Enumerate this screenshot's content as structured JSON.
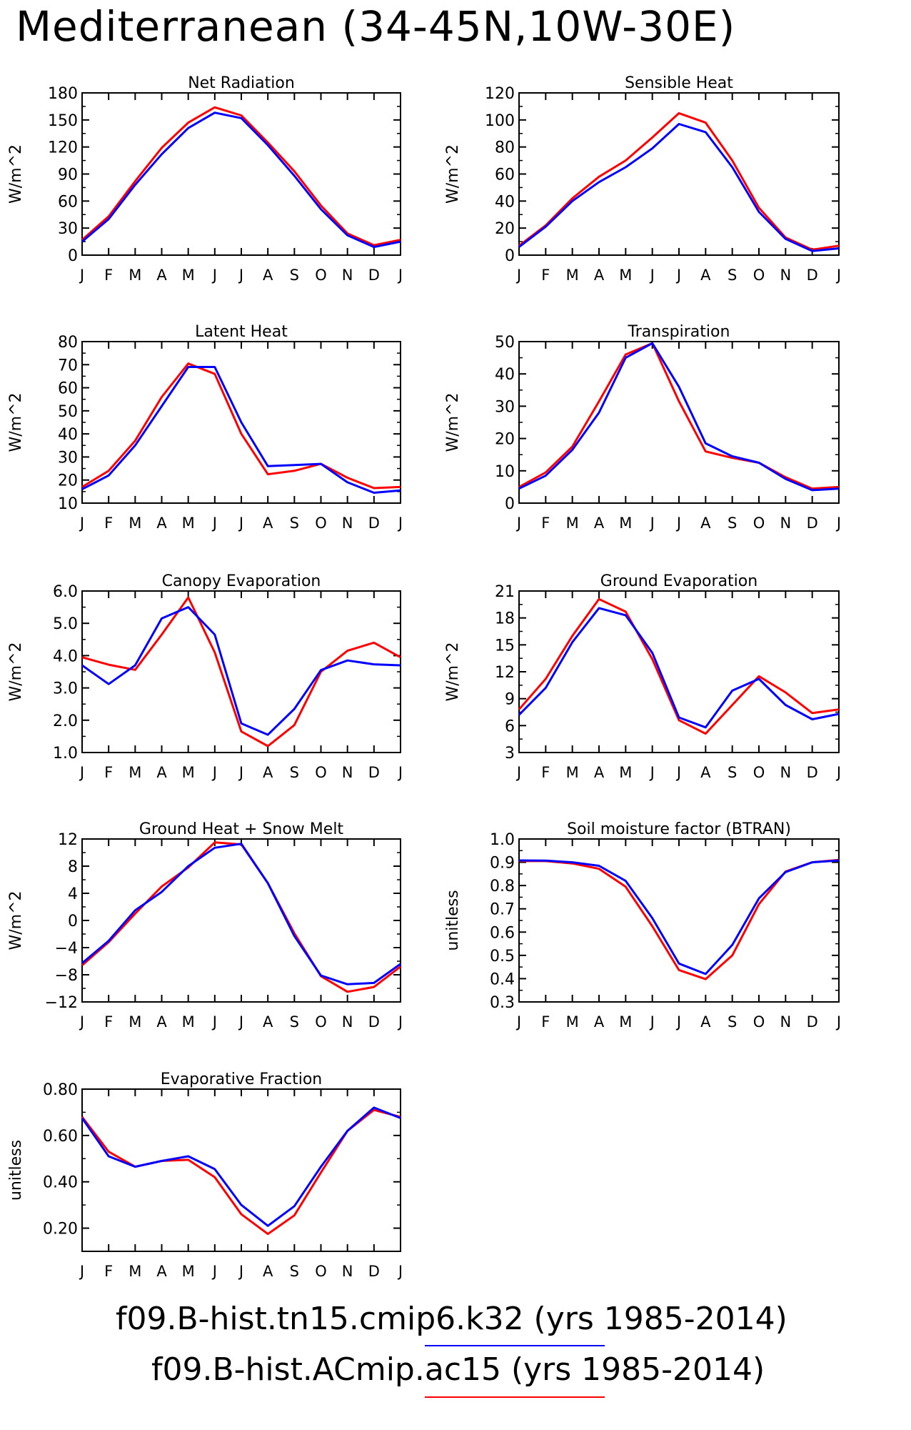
{
  "title": "Mediterranean (34-45N,10W-30E)",
  "legend": [
    {
      "label": "f09.B-hist.tn15.cmip6.k32 (yrs 1985-2014)",
      "color": "#0000ff"
    },
    {
      "label": "f09.B-hist.ACmip.ac15 (yrs 1985-2014)",
      "color": "#ff0000"
    }
  ],
  "chart_data": [
    {
      "type": "line",
      "title": "Net Radiation",
      "ylabel": "W/m^2",
      "categories": [
        "J",
        "F",
        "M",
        "A",
        "M",
        "J",
        "J",
        "A",
        "S",
        "O",
        "N",
        "D",
        "J"
      ],
      "ylim": [
        0,
        180
      ],
      "yticks": [
        "0",
        "30",
        "60",
        "90",
        "120",
        "150",
        "180"
      ],
      "series": [
        {
          "color": "#ff0000",
          "values": [
            17,
            43,
            82,
            119,
            147,
            164,
            155,
            125,
            93,
            55,
            24,
            11,
            17
          ]
        },
        {
          "color": "#0000ff",
          "values": [
            15,
            40,
            78,
            112,
            141,
            158,
            152,
            122,
            88,
            51,
            22,
            9,
            15
          ]
        }
      ]
    },
    {
      "type": "line",
      "title": "Sensible Heat",
      "ylabel": "W/m^2",
      "categories": [
        "J",
        "F",
        "M",
        "A",
        "M",
        "J",
        "J",
        "A",
        "S",
        "O",
        "N",
        "D",
        "J"
      ],
      "ylim": [
        0,
        120
      ],
      "yticks": [
        "0",
        "20",
        "40",
        "60",
        "80",
        "100",
        "120"
      ],
      "series": [
        {
          "color": "#ff0000",
          "values": [
            7,
            22,
            42,
            58,
            70,
            87,
            105,
            98,
            70,
            35,
            13,
            4,
            7
          ]
        },
        {
          "color": "#0000ff",
          "values": [
            6,
            21,
            40,
            54,
            65,
            79,
            97,
            91,
            65,
            32,
            12,
            3,
            5
          ]
        }
      ]
    },
    {
      "type": "line",
      "title": "Latent Heat",
      "ylabel": "W/m^2",
      "categories": [
        "J",
        "F",
        "M",
        "A",
        "M",
        "J",
        "J",
        "A",
        "S",
        "O",
        "N",
        "D",
        "J"
      ],
      "ylim": [
        10,
        80
      ],
      "yticks": [
        "10",
        "20",
        "30",
        "40",
        "50",
        "60",
        "70",
        "80"
      ],
      "series": [
        {
          "color": "#ff0000",
          "values": [
            17,
            24,
            37,
            56,
            70.5,
            66,
            40,
            22.5,
            24,
            27,
            21,
            16.5,
            17
          ]
        },
        {
          "color": "#0000ff",
          "values": [
            16,
            22,
            35,
            52,
            69,
            69,
            45,
            26,
            26.5,
            27,
            19,
            14.5,
            15.5
          ]
        }
      ]
    },
    {
      "type": "line",
      "title": "Transpiration",
      "ylabel": "W/m^2",
      "categories": [
        "J",
        "F",
        "M",
        "A",
        "M",
        "J",
        "J",
        "A",
        "S",
        "O",
        "N",
        "D",
        "J"
      ],
      "ylim": [
        0,
        50
      ],
      "yticks": [
        "0",
        "10",
        "20",
        "30",
        "40",
        "50"
      ],
      "series": [
        {
          "color": "#ff0000",
          "values": [
            5,
            9.5,
            17.5,
            31.5,
            46,
            49.5,
            31.5,
            16,
            14,
            12.5,
            8,
            4.5,
            5
          ]
        },
        {
          "color": "#0000ff",
          "values": [
            4.5,
            8.5,
            16.5,
            28,
            45,
            49.5,
            36,
            18.5,
            14.5,
            12.5,
            7.5,
            4,
            4.5
          ]
        }
      ]
    },
    {
      "type": "line",
      "title": "Canopy Evaporation",
      "ylabel": "W/m^2",
      "categories": [
        "J",
        "F",
        "M",
        "A",
        "M",
        "J",
        "J",
        "A",
        "S",
        "O",
        "N",
        "D",
        "J"
      ],
      "ylim": [
        1.0,
        6.0
      ],
      "yticks": [
        "1.0",
        "2.0",
        "3.0",
        "4.0",
        "5.0",
        "6.0"
      ],
      "series": [
        {
          "color": "#ff0000",
          "values": [
            3.95,
            3.72,
            3.56,
            4.65,
            5.8,
            4.1,
            1.65,
            1.2,
            1.85,
            3.5,
            4.15,
            4.4,
            3.95
          ]
        },
        {
          "color": "#0000ff",
          "values": [
            3.7,
            3.12,
            3.7,
            5.15,
            5.5,
            4.65,
            1.9,
            1.55,
            2.35,
            3.55,
            3.85,
            3.73,
            3.7
          ]
        }
      ]
    },
    {
      "type": "line",
      "title": "Ground Evaporation",
      "ylabel": "W/m^2",
      "categories": [
        "J",
        "F",
        "M",
        "A",
        "M",
        "J",
        "J",
        "A",
        "S",
        "O",
        "N",
        "D",
        "J"
      ],
      "ylim": [
        3,
        21
      ],
      "yticks": [
        "3",
        "6",
        "9",
        "12",
        "15",
        "18",
        "21"
      ],
      "series": [
        {
          "color": "#ff0000",
          "values": [
            7.8,
            11.2,
            16,
            20.1,
            18.7,
            13.4,
            6.6,
            5.1,
            8.3,
            11.5,
            9.7,
            7.4,
            7.8
          ]
        },
        {
          "color": "#0000ff",
          "values": [
            7.2,
            10.2,
            15.3,
            19.1,
            18.3,
            14.1,
            6.9,
            5.8,
            9.9,
            11.2,
            8.3,
            6.7,
            7.3
          ]
        }
      ]
    },
    {
      "type": "line",
      "title": "Ground Heat + Snow Melt",
      "ylabel": "W/m^2",
      "categories": [
        "J",
        "F",
        "M",
        "A",
        "M",
        "J",
        "J",
        "A",
        "S",
        "O",
        "N",
        "D",
        "J"
      ],
      "ylim": [
        -12,
        12
      ],
      "yticks": [
        "−12",
        "−8",
        "−4",
        "0",
        "4",
        "8",
        "12"
      ],
      "series": [
        {
          "color": "#ff0000",
          "values": [
            -6.6,
            -3.2,
            1.0,
            5.0,
            7.8,
            11.5,
            11.2,
            5.5,
            -1.9,
            -8.2,
            -10.5,
            -9.8,
            -6.8
          ]
        },
        {
          "color": "#0000ff",
          "values": [
            -6.3,
            -3.0,
            1.5,
            4.2,
            8.0,
            10.7,
            11.3,
            5.5,
            -2.3,
            -8.1,
            -9.4,
            -9.2,
            -6.4
          ]
        }
      ]
    },
    {
      "type": "line",
      "title": "Soil moisture factor (BTRAN)",
      "ylabel": "unitless",
      "categories": [
        "J",
        "F",
        "M",
        "A",
        "M",
        "J",
        "J",
        "A",
        "S",
        "O",
        "N",
        "D",
        "J"
      ],
      "ylim": [
        0.3,
        1.0
      ],
      "yticks": [
        "0.3",
        "0.4",
        "0.5",
        "0.6",
        "0.7",
        "0.8",
        "0.9",
        "1.0"
      ],
      "series": [
        {
          "color": "#ff0000",
          "values": [
            0.905,
            0.905,
            0.895,
            0.872,
            0.795,
            0.625,
            0.437,
            0.398,
            0.5,
            0.72,
            0.86,
            0.9,
            0.91
          ]
        },
        {
          "color": "#0000ff",
          "values": [
            0.908,
            0.907,
            0.9,
            0.885,
            0.82,
            0.66,
            0.465,
            0.42,
            0.545,
            0.745,
            0.858,
            0.9,
            0.908
          ]
        }
      ]
    },
    {
      "type": "line",
      "title": "Evaporative Fraction",
      "ylabel": "unitless",
      "categories": [
        "J",
        "F",
        "M",
        "A",
        "M",
        "J",
        "J",
        "A",
        "S",
        "O",
        "N",
        "D",
        "J"
      ],
      "ylim": [
        0.1,
        0.8
      ],
      "yticks": [
        "0.20",
        "0.40",
        "0.60",
        "0.80"
      ],
      "ytick_values": [
        0.2,
        0.4,
        0.6,
        0.8
      ],
      "series": [
        {
          "color": "#ff0000",
          "values": [
            0.68,
            0.53,
            0.465,
            0.49,
            0.495,
            0.42,
            0.26,
            0.175,
            0.255,
            0.44,
            0.62,
            0.71,
            0.68
          ]
        },
        {
          "color": "#0000ff",
          "values": [
            0.675,
            0.51,
            0.465,
            0.49,
            0.51,
            0.455,
            0.3,
            0.21,
            0.295,
            0.465,
            0.62,
            0.72,
            0.675
          ]
        }
      ]
    }
  ]
}
